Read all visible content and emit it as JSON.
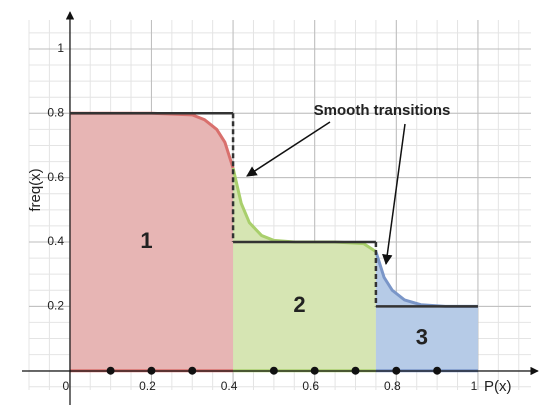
{
  "chart_data": {
    "type": "step",
    "xlabel": "P(x)",
    "ylabel": "freq(x)",
    "annotation": "Smooth transitions",
    "xlim": [
      -0.1,
      1.13
    ],
    "ylim": [
      -0.06,
      1.09
    ],
    "xticks": [
      0,
      0.2,
      0.4,
      0.6,
      0.8,
      1
    ],
    "yticks": [
      0.2,
      0.4,
      0.6,
      0.8,
      1
    ],
    "grid": true,
    "steps": [
      {
        "name": "1",
        "x": [
          0,
          0.4
        ],
        "value": 0.8,
        "color": "#e7b5b4",
        "line_color": "#d9706d",
        "curve_x": [
          0,
          0.2,
          0.3,
          0.33,
          0.36,
          0.38,
          0.4
        ],
        "curve": [
          0.8,
          0.8,
          0.795,
          0.78,
          0.75,
          0.71,
          0.63
        ]
      },
      {
        "name": "2",
        "x": [
          0.4,
          0.75
        ],
        "value": 0.4,
        "color": "#d6e5b3",
        "line_color": "#a9cf6c",
        "curve_x": [
          0.4,
          0.42,
          0.44,
          0.47,
          0.5,
          0.55,
          0.65,
          0.72,
          0.75
        ],
        "curve": [
          0.63,
          0.52,
          0.46,
          0.42,
          0.405,
          0.4,
          0.4,
          0.395,
          0.37
        ]
      },
      {
        "name": "3",
        "x": [
          0.75,
          1
        ],
        "value": 0.2,
        "color": "#b6cbe7",
        "line_color": "#7a96c8",
        "curve_x": [
          0.75,
          0.77,
          0.79,
          0.82,
          0.86,
          0.92,
          1
        ],
        "curve": [
          0.37,
          0.29,
          0.25,
          0.22,
          0.205,
          0.2,
          0.2
        ]
      }
    ],
    "points": {
      "x": [
        0.1,
        0.2,
        0.3,
        0.5,
        0.6,
        0.7,
        0.8,
        0.9
      ],
      "values": [
        0,
        0,
        0,
        0,
        0,
        0,
        0,
        0
      ],
      "color": "#111"
    }
  }
}
